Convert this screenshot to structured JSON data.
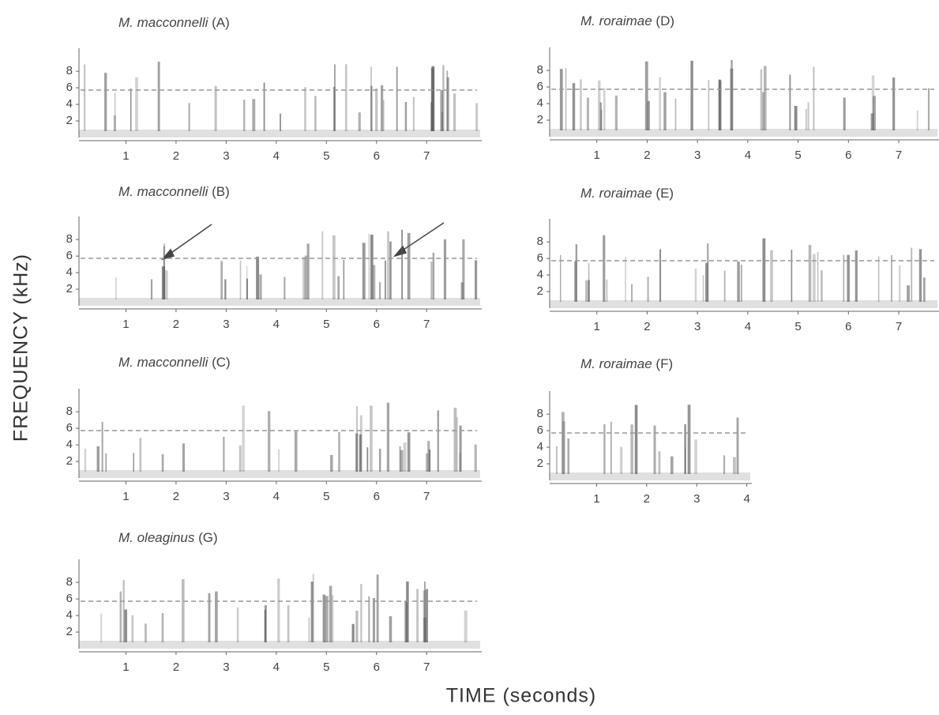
{
  "y_axis_label": "FREQUENCY  (kHz)",
  "x_axis_label": "TIME (seconds)",
  "chart_data": [
    {
      "type": "spectrogram",
      "species": "M. macconnelli",
      "panel_label": "(A)",
      "xlim": [
        0,
        8.1
      ],
      "xticks": [
        1,
        2,
        3,
        4,
        5,
        6,
        7
      ],
      "ylim": [
        0,
        10.4
      ],
      "yticks": [
        2,
        4,
        6,
        8
      ]
    },
    {
      "type": "spectrogram",
      "species": "M. macconnelli",
      "panel_label": "(B)",
      "xlim": [
        0,
        8.1
      ],
      "xticks": [
        1,
        2,
        3,
        4,
        5,
        6,
        7
      ],
      "ylim": [
        0,
        10.4
      ],
      "yticks": [
        2,
        4,
        6,
        8
      ]
    },
    {
      "type": "spectrogram",
      "species": "M. macconnelli",
      "panel_label": "(C)",
      "xlim": [
        0,
        8.1
      ],
      "xticks": [
        1,
        2,
        3,
        4,
        5,
        6,
        7
      ],
      "ylim": [
        0,
        10.4
      ],
      "yticks": [
        2,
        4,
        6,
        8
      ]
    },
    {
      "type": "spectrogram",
      "species": "M. oleaginus",
      "panel_label": "(G)",
      "xlim": [
        0,
        8.1
      ],
      "xticks": [
        1,
        2,
        3,
        4,
        5,
        6,
        7
      ],
      "ylim": [
        0,
        10.4
      ],
      "yticks": [
        2,
        4,
        6,
        8
      ]
    },
    {
      "type": "spectrogram",
      "species": "M. roraimae",
      "panel_label": "(D)",
      "xlim": [
        0,
        7.8
      ],
      "xticks": [
        1,
        2,
        3,
        4,
        5,
        6,
        7
      ],
      "ylim": [
        0,
        10.4
      ],
      "yticks": [
        2,
        4,
        6,
        8
      ]
    },
    {
      "type": "spectrogram",
      "species": "M. roraimae",
      "panel_label": "(E)",
      "xlim": [
        0,
        7.8
      ],
      "xticks": [
        1,
        2,
        3,
        4,
        5,
        6,
        7
      ],
      "ylim": [
        0,
        10.4
      ],
      "yticks": [
        2,
        4,
        6,
        8
      ]
    },
    {
      "type": "spectrogram",
      "species": "M. roraimae",
      "panel_label": "(F)",
      "xlim": [
        0,
        4.1
      ],
      "xticks": [
        1,
        2,
        3,
        4
      ],
      "ylim": [
        0,
        10.4
      ],
      "yticks": [
        2,
        4,
        6,
        8
      ]
    }
  ]
}
